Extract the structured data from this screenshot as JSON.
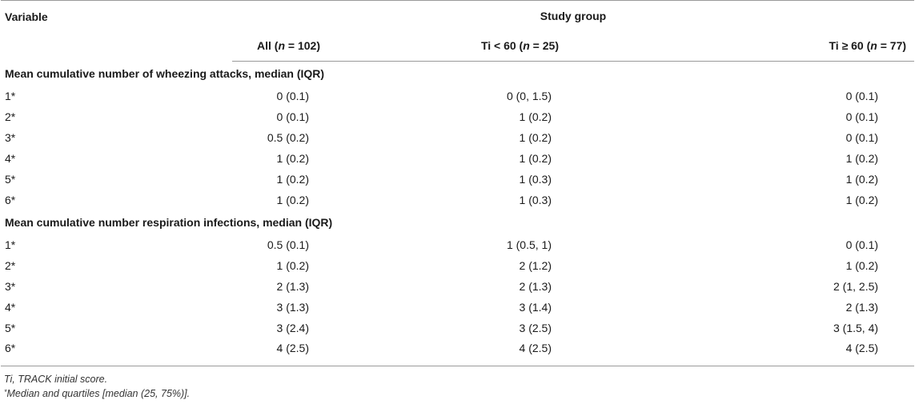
{
  "header": {
    "variable_label": "Variable",
    "study_group_label": "Study group",
    "columns": [
      {
        "prefix": "All (",
        "n": "n",
        "suffix": " = 102)"
      },
      {
        "prefix": "Ti < 60 (",
        "n": "n",
        "suffix": " = 25)"
      },
      {
        "prefix": "Ti ≥ 60 (",
        "n": "n",
        "suffix": " = 77)"
      }
    ]
  },
  "sections": [
    {
      "title": "Mean cumulative number of wheezing attacks, median (IQR)",
      "rows": [
        {
          "label": "1*",
          "all": "0 (0.1)",
          "lt60": "0 (0, 1.5)",
          "ge60": "0 (0.1)"
        },
        {
          "label": "2*",
          "all": "0 (0.1)",
          "lt60": "1 (0.2)",
          "ge60": "0 (0.1)"
        },
        {
          "label": "3*",
          "all": "0.5 (0.2)",
          "lt60": "1 (0.2)",
          "ge60": "0 (0.1)"
        },
        {
          "label": "4*",
          "all": "1 (0.2)",
          "lt60": "1 (0.2)",
          "ge60": "1 (0.2)"
        },
        {
          "label": "5*",
          "all": "1 (0.2)",
          "lt60": "1 (0.3)",
          "ge60": "1 (0.2)"
        },
        {
          "label": "6*",
          "all": "1 (0.2)",
          "lt60": "1 (0.3)",
          "ge60": "1 (0.2)"
        }
      ]
    },
    {
      "title": "Mean cumulative number respiration infections, median (IQR)",
      "rows": [
        {
          "label": "1*",
          "all": "0.5 (0.1)",
          "lt60": "1 (0.5, 1)",
          "ge60": "0 (0.1)"
        },
        {
          "label": "2*",
          "all": "1 (0.2)",
          "lt60": "2 (1.2)",
          "ge60": "1 (0.2)"
        },
        {
          "label": "3*",
          "all": "2 (1.3)",
          "lt60": "2 (1.3)",
          "ge60": "2 (1, 2.5)"
        },
        {
          "label": "4*",
          "all": "3 (1.3)",
          "lt60": "3 (1.4)",
          "ge60": "2 (1.3)"
        },
        {
          "label": "5*",
          "all": "3 (2.4)",
          "lt60": "3 (2.5)",
          "ge60": "3 (1.5, 4)"
        },
        {
          "label": "6*",
          "all": "4 (2.5)",
          "lt60": "4 (2.5)",
          "ge60": "4 (2.5)"
        }
      ]
    }
  ],
  "footnotes": {
    "abbrev": "Ti, TRACK initial score.",
    "star_mark": "*",
    "star_text": "Median and quartiles [median (25, 75%)]."
  }
}
